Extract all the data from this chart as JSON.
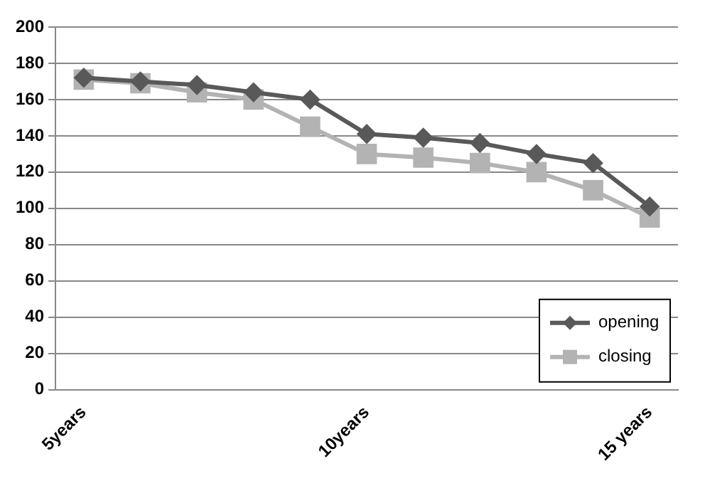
{
  "chart_data": {
    "type": "line",
    "categories": [
      "5years",
      null,
      null,
      null,
      null,
      "10years",
      null,
      null,
      null,
      null,
      "15 years"
    ],
    "series": [
      {
        "name": "opening",
        "color": "#595959",
        "marker": "diamond",
        "values": [
          172,
          170,
          168,
          164,
          160,
          141,
          139,
          136,
          130,
          125,
          101
        ]
      },
      {
        "name": "closing",
        "color": "#b3b3b3",
        "marker": "square",
        "values": [
          171,
          169,
          164,
          160,
          145,
          130,
          128,
          125,
          120,
          110,
          95
        ]
      }
    ],
    "ylim": [
      0,
      200
    ],
    "yticks": [
      0,
      20,
      40,
      60,
      80,
      100,
      120,
      140,
      160,
      180,
      200
    ],
    "grid": "y",
    "legend": "bottom right",
    "line_style": "solid"
  }
}
